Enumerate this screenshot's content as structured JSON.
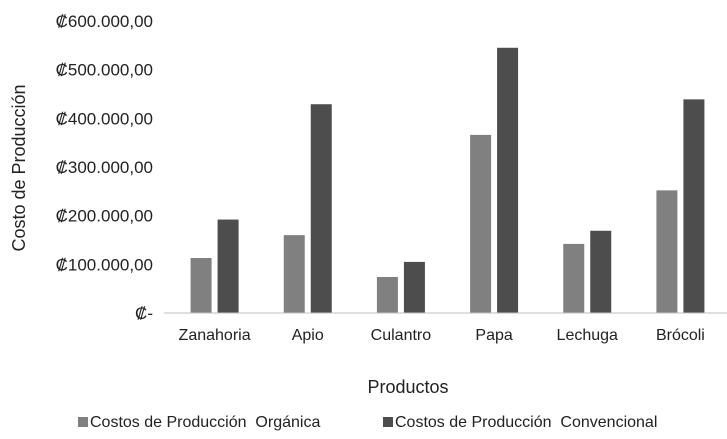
{
  "chart_data": {
    "type": "bar",
    "title": "",
    "xlabel": "Productos",
    "ylabel": "Costo de Producción",
    "ylim": [
      0,
      600000
    ],
    "yticks": [
      {
        "value": 0,
        "label": "₡-"
      },
      {
        "value": 100000,
        "label": "₡100.000,00"
      },
      {
        "value": 200000,
        "label": "₡200.000,00"
      },
      {
        "value": 300000,
        "label": "₡300.000,00"
      },
      {
        "value": 400000,
        "label": "₡400.000,00"
      },
      {
        "value": 500000,
        "label": "₡500.000,00"
      },
      {
        "value": 600000,
        "label": "₡600.000,00"
      }
    ],
    "grid": false,
    "legend_position": "bottom",
    "categories": [
      "Zanahoria",
      "Apio",
      "Culantro",
      "Papa",
      "Lechuga",
      "Brócoli"
    ],
    "series": [
      {
        "name": "Costos de Producción  Orgánica",
        "color": "#808080",
        "values": [
          113000,
          160000,
          74000,
          366000,
          142000,
          252000
        ]
      },
      {
        "name": "Costos de Producción  Convencional",
        "color": "#4d4d4d",
        "values": [
          192000,
          429000,
          105000,
          545000,
          169000,
          439000
        ]
      }
    ]
  }
}
